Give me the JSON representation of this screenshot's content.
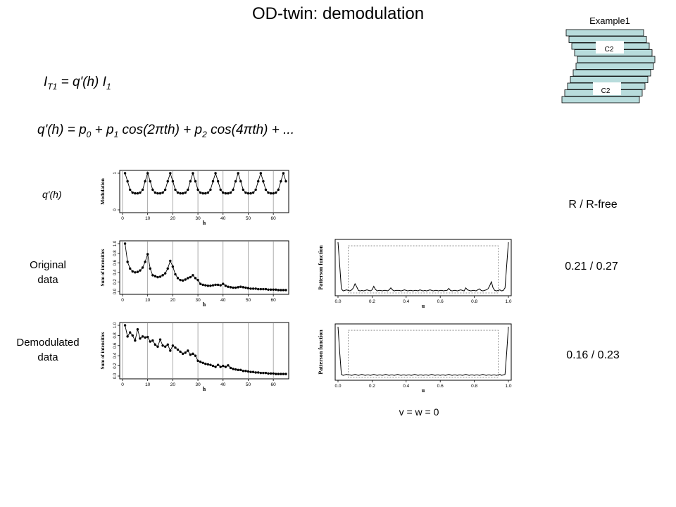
{
  "slide": {
    "title": "OD-twin: demodulation",
    "eq1": {
      "I": "I",
      "T1": "T1",
      "mid": " = q'(h) I",
      "one": "1"
    },
    "eq2": {
      "a": "q'(h) = p",
      "p0": "0",
      "b": " + p",
      "p1": "1",
      "c": " cos(2",
      "pi1": "π",
      "d": "th) + p",
      "p2": "2",
      "e": " cos(4",
      "pi2": "π",
      "f": "th) + ..."
    },
    "row_label_q": "q'(h)",
    "row_label_orig_1": "Original",
    "row_label_orig_2": "data",
    "row_label_demod_1": "Demodulated",
    "row_label_demod_2": "data",
    "r_header": "R / R-free",
    "r_original": "0.21 / 0.27",
    "r_demod": "0.16 / 0.23",
    "vw_label": "v = w = 0"
  },
  "inset": {
    "title": "Example1",
    "label_top": "C2",
    "label_bottom": "C2",
    "fill_color": "#b8dcdc"
  },
  "chart_data": [
    {
      "type": "line",
      "ylabel": "Modulation",
      "xlabel": "h",
      "xlim": [
        0,
        65
      ],
      "ylim": [
        0,
        1
      ],
      "xticks": [
        0,
        10,
        20,
        30,
        40,
        50,
        60
      ],
      "yticks": [
        0,
        1
      ],
      "vlines": [
        0,
        10,
        20,
        30,
        40,
        50,
        60
      ],
      "x": [
        1,
        2,
        3,
        4,
        5,
        6,
        7,
        8,
        9,
        10,
        11,
        12,
        13,
        14,
        15,
        16,
        17,
        18,
        19,
        20,
        21,
        22,
        23,
        24,
        25,
        26,
        27,
        28,
        29,
        30,
        31,
        32,
        33,
        34,
        35,
        36,
        37,
        38,
        39,
        40,
        41,
        42,
        43,
        44,
        45,
        46,
        47,
        48,
        49,
        50,
        51,
        52,
        53,
        54,
        55,
        56,
        57,
        58,
        59,
        60,
        61,
        62,
        63,
        64,
        65
      ],
      "values": [
        1.0,
        0.78,
        0.55,
        0.47,
        0.45,
        0.45,
        0.47,
        0.55,
        0.78,
        1.0,
        0.78,
        0.55,
        0.47,
        0.45,
        0.45,
        0.47,
        0.55,
        0.78,
        1.0,
        0.78,
        0.55,
        0.47,
        0.45,
        0.45,
        0.47,
        0.55,
        0.78,
        1.0,
        0.78,
        0.55,
        0.47,
        0.45,
        0.45,
        0.47,
        0.55,
        0.78,
        1.0,
        0.78,
        0.55,
        0.47,
        0.45,
        0.45,
        0.47,
        0.55,
        0.78,
        1.0,
        0.78,
        0.55,
        0.47,
        0.45,
        0.45,
        0.47,
        0.55,
        0.78,
        1.0,
        0.78,
        0.55,
        0.47,
        0.45,
        0.45,
        0.47,
        0.55,
        0.78,
        1.0,
        0.78
      ]
    },
    {
      "type": "line",
      "ylabel": "Sum of intensities",
      "xlabel": "h",
      "xlim": [
        0,
        65
      ],
      "ylim": [
        0,
        1
      ],
      "xticks": [
        0,
        10,
        20,
        30,
        40,
        50,
        60
      ],
      "yticks": [
        0.0,
        0.2,
        0.4,
        0.6,
        0.8,
        1.0
      ],
      "vlines": [
        0,
        10,
        20,
        30,
        40,
        50,
        60
      ],
      "x": [
        1,
        2,
        3,
        4,
        5,
        6,
        7,
        8,
        9,
        10,
        11,
        12,
        13,
        14,
        15,
        16,
        17,
        18,
        19,
        20,
        21,
        22,
        23,
        24,
        25,
        26,
        27,
        28,
        29,
        30,
        31,
        32,
        33,
        34,
        35,
        36,
        37,
        38,
        39,
        40,
        41,
        42,
        43,
        44,
        45,
        46,
        47,
        48,
        49,
        50,
        51,
        52,
        53,
        54,
        55,
        56,
        57,
        58,
        59,
        60,
        61,
        62,
        63,
        64,
        65
      ],
      "values": [
        1.0,
        0.62,
        0.48,
        0.42,
        0.4,
        0.41,
        0.44,
        0.5,
        0.62,
        0.78,
        0.48,
        0.34,
        0.32,
        0.3,
        0.31,
        0.34,
        0.38,
        0.48,
        0.64,
        0.52,
        0.36,
        0.28,
        0.24,
        0.23,
        0.25,
        0.28,
        0.3,
        0.34,
        0.28,
        0.24,
        0.16,
        0.14,
        0.13,
        0.12,
        0.12,
        0.13,
        0.14,
        0.14,
        0.13,
        0.16,
        0.12,
        0.1,
        0.09,
        0.08,
        0.08,
        0.09,
        0.1,
        0.09,
        0.08,
        0.07,
        0.06,
        0.06,
        0.06,
        0.05,
        0.05,
        0.05,
        0.05,
        0.04,
        0.04,
        0.04,
        0.04,
        0.03,
        0.03,
        0.03,
        0.03
      ]
    },
    {
      "type": "line",
      "ylabel": "Sum of intensities",
      "xlabel": "h",
      "xlim": [
        0,
        65
      ],
      "ylim": [
        0,
        1
      ],
      "xticks": [
        0,
        10,
        20,
        30,
        40,
        50,
        60
      ],
      "yticks": [
        0.0,
        0.2,
        0.4,
        0.6,
        0.8,
        1.0
      ],
      "vlines": [
        0,
        10,
        20,
        30,
        40,
        50,
        60
      ],
      "x": [
        1,
        2,
        3,
        4,
        5,
        6,
        7,
        8,
        9,
        10,
        11,
        12,
        13,
        14,
        15,
        16,
        17,
        18,
        19,
        20,
        21,
        22,
        23,
        24,
        25,
        26,
        27,
        28,
        29,
        30,
        31,
        32,
        33,
        34,
        35,
        36,
        37,
        38,
        39,
        40,
        41,
        42,
        43,
        44,
        45,
        46,
        47,
        48,
        49,
        50,
        51,
        52,
        53,
        54,
        55,
        56,
        57,
        58,
        59,
        60,
        61,
        62,
        63,
        64,
        65
      ],
      "values": [
        1.0,
        0.78,
        0.86,
        0.8,
        0.7,
        0.92,
        0.74,
        0.78,
        0.76,
        0.77,
        0.68,
        0.7,
        0.62,
        0.58,
        0.72,
        0.6,
        0.58,
        0.62,
        0.5,
        0.6,
        0.56,
        0.52,
        0.48,
        0.44,
        0.46,
        0.5,
        0.42,
        0.44,
        0.4,
        0.3,
        0.28,
        0.26,
        0.24,
        0.23,
        0.22,
        0.2,
        0.18,
        0.22,
        0.18,
        0.2,
        0.18,
        0.21,
        0.16,
        0.14,
        0.13,
        0.12,
        0.12,
        0.1,
        0.1,
        0.09,
        0.08,
        0.08,
        0.07,
        0.07,
        0.06,
        0.06,
        0.06,
        0.05,
        0.05,
        0.05,
        0.04,
        0.04,
        0.04,
        0.04,
        0.04
      ]
    },
    {
      "type": "line",
      "ylabel": "Patterson function",
      "xlabel": "u",
      "xlim": [
        0,
        1
      ],
      "xticks": [
        0.0,
        0.2,
        0.4,
        0.6,
        0.8,
        1.0
      ],
      "x": [
        0,
        0.01,
        0.02,
        0.03,
        0.04,
        0.05,
        0.06,
        0.07,
        0.08,
        0.09,
        0.1,
        0.11,
        0.12,
        0.13,
        0.14,
        0.15,
        0.16,
        0.17,
        0.18,
        0.19,
        0.2,
        0.21,
        0.22,
        0.23,
        0.24,
        0.25,
        0.26,
        0.27,
        0.28,
        0.29,
        0.3,
        0.31,
        0.32,
        0.33,
        0.34,
        0.35,
        0.36,
        0.37,
        0.38,
        0.39,
        0.4,
        0.41,
        0.42,
        0.43,
        0.44,
        0.45,
        0.46,
        0.47,
        0.48,
        0.49,
        0.5,
        0.51,
        0.52,
        0.53,
        0.54,
        0.55,
        0.56,
        0.57,
        0.58,
        0.59,
        0.6,
        0.61,
        0.62,
        0.63,
        0.64,
        0.65,
        0.66,
        0.67,
        0.68,
        0.69,
        0.7,
        0.71,
        0.72,
        0.73,
        0.74,
        0.75,
        0.76,
        0.77,
        0.78,
        0.79,
        0.8,
        0.81,
        0.82,
        0.83,
        0.84,
        0.85,
        0.86,
        0.87,
        0.88,
        0.89,
        0.9,
        0.91,
        0.92,
        0.93,
        0.94,
        0.95,
        0.96,
        0.97,
        0.98,
        0.99,
        1.0
      ],
      "values": [
        1.0,
        0.55,
        0.08,
        0.04,
        0.05,
        0.06,
        0.05,
        0.04,
        0.06,
        0.1,
        0.18,
        0.12,
        0.05,
        0.04,
        0.05,
        0.04,
        0.05,
        0.06,
        0.05,
        0.04,
        0.06,
        0.13,
        0.07,
        0.04,
        0.05,
        0.05,
        0.04,
        0.05,
        0.05,
        0.04,
        0.06,
        0.1,
        0.06,
        0.04,
        0.05,
        0.05,
        0.05,
        0.04,
        0.05,
        0.06,
        0.05,
        0.04,
        0.05,
        0.05,
        0.04,
        0.05,
        0.05,
        0.04,
        0.06,
        0.05,
        0.04,
        0.05,
        0.04,
        0.05,
        0.06,
        0.05,
        0.04,
        0.05,
        0.05,
        0.04,
        0.05,
        0.05,
        0.04,
        0.05,
        0.05,
        0.09,
        0.05,
        0.04,
        0.05,
        0.05,
        0.04,
        0.05,
        0.06,
        0.05,
        0.04,
        0.1,
        0.06,
        0.05,
        0.04,
        0.05,
        0.05,
        0.04,
        0.06,
        0.08,
        0.05,
        0.04,
        0.05,
        0.06,
        0.08,
        0.14,
        0.22,
        0.1,
        0.05,
        0.04,
        0.05,
        0.06,
        0.04,
        0.05,
        0.1,
        0.55,
        1.0
      ],
      "box": {
        "x0": 0.06,
        "x1": 0.94,
        "y_top": 0.93
      }
    },
    {
      "type": "line",
      "ylabel": "Patterson function",
      "xlabel": "u",
      "xlim": [
        0,
        1
      ],
      "xticks": [
        0.0,
        0.2,
        0.4,
        0.6,
        0.8,
        1.0
      ],
      "x": [
        0,
        0.01,
        0.02,
        0.03,
        0.04,
        0.05,
        0.06,
        0.07,
        0.08,
        0.09,
        0.1,
        0.11,
        0.12,
        0.13,
        0.14,
        0.15,
        0.16,
        0.17,
        0.18,
        0.19,
        0.2,
        0.21,
        0.22,
        0.23,
        0.24,
        0.25,
        0.26,
        0.27,
        0.28,
        0.29,
        0.3,
        0.31,
        0.32,
        0.33,
        0.34,
        0.35,
        0.36,
        0.37,
        0.38,
        0.39,
        0.4,
        0.41,
        0.42,
        0.43,
        0.44,
        0.45,
        0.46,
        0.47,
        0.48,
        0.49,
        0.5,
        0.51,
        0.52,
        0.53,
        0.54,
        0.55,
        0.56,
        0.57,
        0.58,
        0.59,
        0.6,
        0.61,
        0.62,
        0.63,
        0.64,
        0.65,
        0.66,
        0.67,
        0.68,
        0.69,
        0.7,
        0.71,
        0.72,
        0.73,
        0.74,
        0.75,
        0.76,
        0.77,
        0.78,
        0.79,
        0.8,
        0.81,
        0.82,
        0.83,
        0.84,
        0.85,
        0.86,
        0.87,
        0.88,
        0.89,
        0.9,
        0.91,
        0.92,
        0.93,
        0.94,
        0.95,
        0.96,
        0.97,
        0.98,
        0.99,
        1.0
      ],
      "values": [
        1.0,
        0.5,
        0.06,
        0.04,
        0.05,
        0.06,
        0.05,
        0.05,
        0.04,
        0.05,
        0.06,
        0.05,
        0.04,
        0.05,
        0.06,
        0.05,
        0.04,
        0.05,
        0.05,
        0.04,
        0.05,
        0.06,
        0.05,
        0.04,
        0.05,
        0.05,
        0.04,
        0.05,
        0.06,
        0.05,
        0.04,
        0.05,
        0.05,
        0.04,
        0.05,
        0.06,
        0.05,
        0.04,
        0.05,
        0.05,
        0.04,
        0.05,
        0.05,
        0.04,
        0.05,
        0.06,
        0.05,
        0.04,
        0.05,
        0.05,
        0.04,
        0.05,
        0.05,
        0.04,
        0.05,
        0.06,
        0.05,
        0.04,
        0.05,
        0.05,
        0.04,
        0.05,
        0.05,
        0.04,
        0.05,
        0.06,
        0.05,
        0.04,
        0.05,
        0.05,
        0.04,
        0.05,
        0.05,
        0.04,
        0.05,
        0.06,
        0.05,
        0.04,
        0.05,
        0.05,
        0.04,
        0.05,
        0.05,
        0.04,
        0.05,
        0.06,
        0.05,
        0.04,
        0.05,
        0.05,
        0.04,
        0.05,
        0.05,
        0.04,
        0.05,
        0.06,
        0.04,
        0.05,
        0.06,
        0.5,
        1.0
      ],
      "box": {
        "x0": 0.06,
        "x1": 0.94,
        "y_top": 0.93
      }
    }
  ]
}
